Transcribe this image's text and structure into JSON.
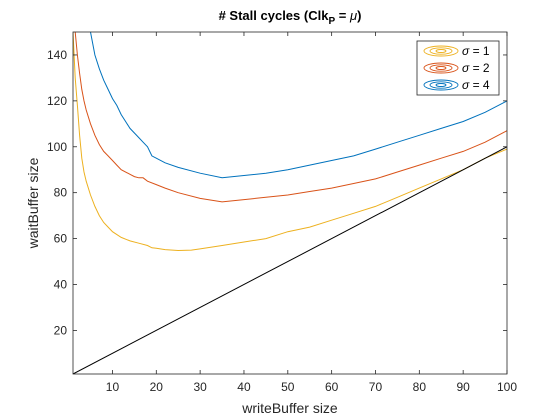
{
  "chart_data": {
    "type": "line",
    "title_prefix": "# Stall cycles (Clk",
    "title_sub": "P",
    "title_mid": " = ",
    "title_mu": "μ",
    "title_suffix": ")",
    "xlabel": "writeBuffer size",
    "ylabel": "waitBuffer size",
    "xlim": [
      1,
      100
    ],
    "ylim": [
      1,
      150
    ],
    "xticks": [
      10,
      20,
      30,
      40,
      50,
      60,
      70,
      80,
      90,
      100
    ],
    "yticks": [
      20,
      40,
      60,
      80,
      100,
      120,
      140
    ],
    "grid": false,
    "legend_position": "top-right",
    "series": [
      {
        "name": "= 1",
        "symbol": "σ",
        "color": "#EDB120",
        "x": [
          1,
          1.5,
          2,
          2.5,
          3,
          3.5,
          4,
          5,
          6,
          7,
          8,
          9,
          10,
          12,
          14,
          16,
          18,
          19,
          20,
          22,
          25,
          28,
          30,
          35,
          40,
          45,
          50,
          55,
          60,
          65,
          70,
          75,
          80,
          85,
          90,
          95,
          100
        ],
        "y": [
          150,
          130,
          118,
          105,
          95,
          89,
          85,
          79,
          74,
          70,
          67,
          65,
          63,
          60.5,
          59,
          58,
          57,
          56,
          55.8,
          55.2,
          54.8,
          55,
          55.5,
          57,
          58.5,
          60,
          63,
          65,
          68,
          71,
          74,
          78,
          82,
          86,
          90,
          95,
          99
        ]
      },
      {
        "name": "= 2",
        "symbol": "σ",
        "color": "#D95319",
        "x": [
          1.5,
          2,
          2.5,
          3,
          3.5,
          4,
          5,
          6,
          7,
          8,
          9,
          10,
          11,
          12,
          14,
          15,
          16,
          17,
          18,
          20,
          22,
          25,
          30,
          35,
          40,
          45,
          50,
          55,
          60,
          65,
          70,
          75,
          80,
          85,
          90,
          95,
          100
        ],
        "y": [
          150,
          140,
          132,
          125,
          120,
          116,
          110,
          105,
          101,
          98,
          96,
          94,
          92,
          90,
          88,
          87,
          86.5,
          86.5,
          85,
          83.5,
          82,
          80,
          77.5,
          76,
          77,
          78,
          79,
          80.5,
          82,
          84,
          86,
          89,
          92,
          95,
          98,
          102,
          107
        ]
      },
      {
        "name": "= 4",
        "symbol": "σ",
        "color": "#0072BD",
        "x": [
          5,
          5.5,
          6,
          7,
          8,
          9,
          10,
          11,
          12,
          13,
          14,
          15,
          16,
          17,
          18,
          19,
          20,
          22,
          25,
          30,
          35,
          40,
          45,
          50,
          55,
          60,
          65,
          70,
          75,
          80,
          85,
          90,
          95,
          100
        ],
        "y": [
          150,
          145,
          140,
          134,
          129,
          125,
          121,
          118,
          114,
          111,
          108,
          106,
          104,
          102,
          100,
          96,
          95,
          93,
          91,
          88.5,
          86.5,
          87.5,
          88.5,
          90,
          92,
          94,
          96,
          99,
          102,
          105,
          108,
          111,
          115,
          120
        ]
      },
      {
        "name": "",
        "symbol": "",
        "color": "#000000",
        "x": [
          1,
          100
        ],
        "y": [
          1,
          100
        ]
      }
    ]
  }
}
